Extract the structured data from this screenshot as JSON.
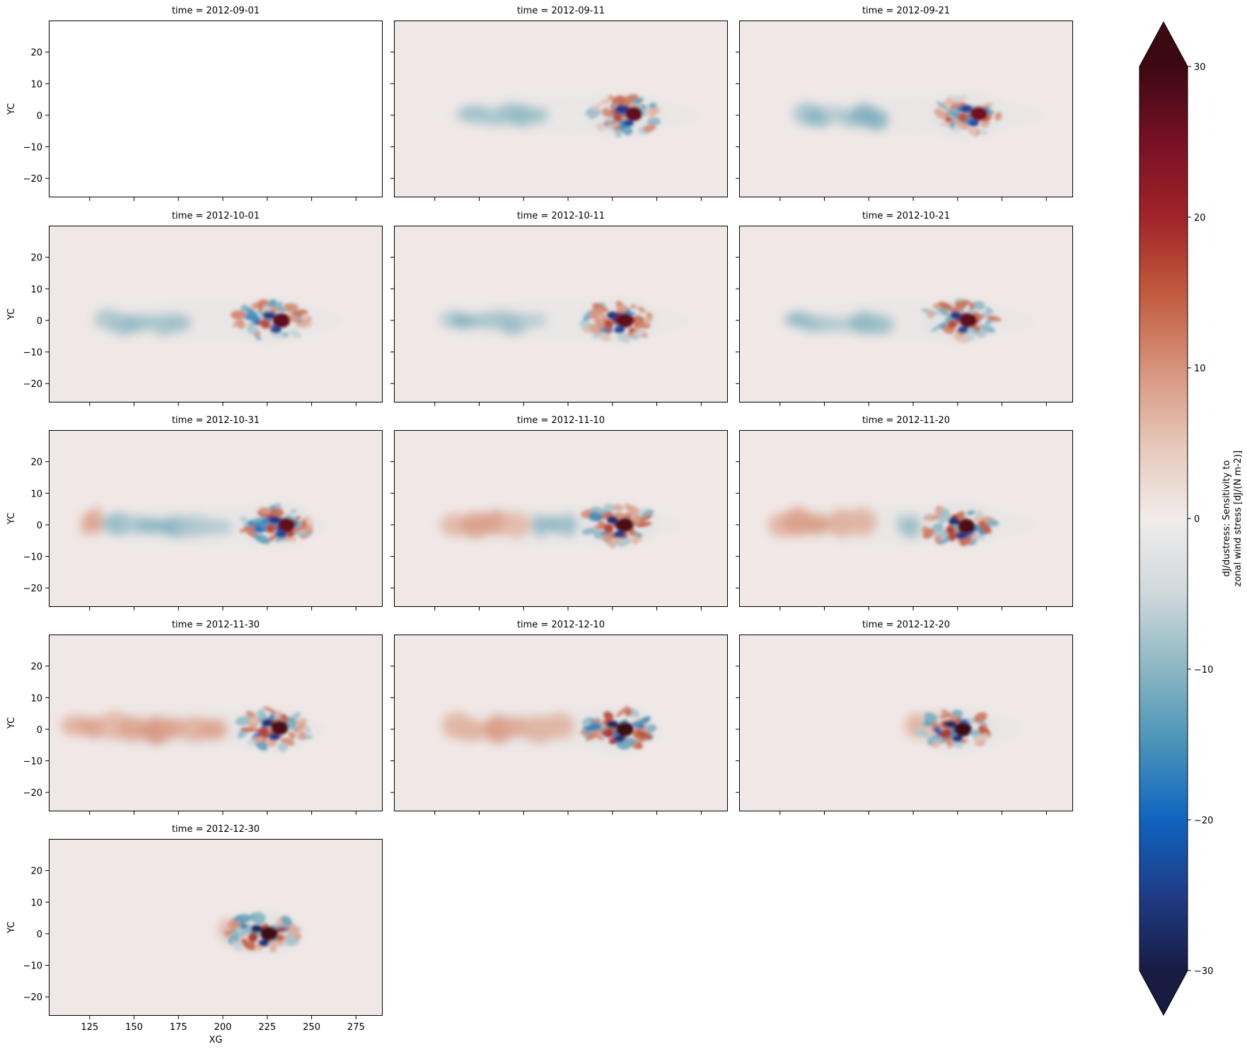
{
  "chart_data": {
    "type": "heatmap",
    "layout": "facet-grid",
    "facet_columns": 3,
    "facet_label_prefix": "time = ",
    "panels": [
      {
        "time": "2012-09-01",
        "empty": true
      },
      {
        "time": "2012-09-11",
        "features": {
          "blob_center_x": 232,
          "hot_core_x": 237,
          "hot_core_y": 0.5,
          "strength": 0.9,
          "x_extent": [
            130,
            275
          ],
          "west_blue_x": [
            140,
            185
          ],
          "west_red_x": []
        }
      },
      {
        "time": "2012-09-21",
        "features": {
          "blob_center_x": 230,
          "hot_core_x": 237,
          "hot_core_y": 0.5,
          "strength": 0.85,
          "x_extent": [
            128,
            275
          ],
          "west_blue_x": [
            135,
            185
          ],
          "west_red_x": []
        }
      },
      {
        "time": "2012-10-01",
        "features": {
          "blob_center_x": 227,
          "hot_core_x": 233,
          "hot_core_y": 0,
          "strength": 0.9,
          "x_extent": [
            122,
            270
          ],
          "west_blue_x": [
            130,
            180
          ],
          "west_red_x": []
        }
      },
      {
        "time": "2012-10-11",
        "features": {
          "blob_center_x": 228,
          "hot_core_x": 232,
          "hot_core_y": 0,
          "strength": 0.9,
          "x_extent": [
            125,
            270
          ],
          "west_blue_x": [
            130,
            185
          ],
          "west_red_x": []
        }
      },
      {
        "time": "2012-10-21",
        "features": {
          "blob_center_x": 226,
          "hot_core_x": 231,
          "hot_core_y": 0,
          "strength": 0.9,
          "x_extent": [
            125,
            270
          ],
          "west_blue_x": [
            130,
            185
          ],
          "west_red_x": []
        }
      },
      {
        "time": "2012-10-31",
        "features": {
          "blob_center_x": 230,
          "hot_core_x": 236,
          "hot_core_y": 0,
          "strength": 0.9,
          "x_extent": [
            120,
            260
          ],
          "west_blue_x": [
            135,
            200
          ],
          "west_red_x": [
            120,
            130
          ]
        }
      },
      {
        "time": "2012-11-10",
        "features": {
          "blob_center_x": 228,
          "hot_core_x": 232,
          "hot_core_y": 0,
          "strength": 0.95,
          "x_extent": [
            122,
            265
          ],
          "west_blue_x": [
            180,
            205
          ],
          "west_red_x": [
            130,
            175
          ]
        }
      },
      {
        "time": "2012-11-20",
        "features": {
          "blob_center_x": 226,
          "hot_core_x": 230,
          "hot_core_y": -0.5,
          "strength": 0.95,
          "x_extent": [
            118,
            270
          ],
          "west_blue_x": [
            190,
            205
          ],
          "west_red_x": [
            120,
            175
          ]
        }
      },
      {
        "time": "2012-11-30",
        "features": {
          "blob_center_x": 228,
          "hot_core_x": 232,
          "hot_core_y": 0.5,
          "strength": 0.95,
          "x_extent": [
            110,
            260
          ],
          "west_blue_x": [],
          "west_red_x": [
            110,
            200
          ]
        }
      },
      {
        "time": "2012-12-10",
        "features": {
          "blob_center_x": 228,
          "hot_core_x": 232,
          "hot_core_y": 0,
          "strength": 1.0,
          "x_extent": [
            130,
            255
          ],
          "west_blue_x": [],
          "west_red_x": [
            130,
            200
          ]
        }
      },
      {
        "time": "2012-12-20",
        "features": {
          "blob_center_x": 224,
          "hot_core_x": 228,
          "hot_core_y": 0,
          "strength": 1.0,
          "x_extent": [
            195,
            262
          ],
          "west_blue_x": [],
          "west_red_x": [
            195,
            218
          ]
        }
      },
      {
        "time": "2012-12-30",
        "features": {
          "blob_center_x": 222,
          "hot_core_x": 226,
          "hot_core_y": 0,
          "strength": 1.0,
          "x_extent": [
            196,
            246
          ],
          "west_blue_x": [],
          "west_red_x": [
            198,
            218
          ]
        }
      }
    ],
    "xlabel": "XG",
    "ylabel": "YC",
    "xlim": [
      102,
      290
    ],
    "ylim": [
      -26,
      30
    ],
    "xticks": [
      125,
      150,
      175,
      200,
      225,
      250,
      275
    ],
    "yticks": [
      -20,
      -10,
      0,
      10,
      20
    ],
    "grid": false,
    "colorbar": {
      "label_line1": "dJ/dustress: Sensitivity to",
      "label_line2": "zonal wind stress [dJ/(N m-2)]",
      "vmin": -30,
      "vmax": 30,
      "ticks": [
        -30,
        -20,
        -10,
        0,
        10,
        20,
        30
      ],
      "tick_labels": [
        "−30",
        "−20",
        "−10",
        "0",
        "10",
        "20",
        "30"
      ],
      "extend": "both",
      "colormap": "cmocean-balance",
      "stops": [
        "#181c43",
        "#1f3c86",
        "#0f64c0",
        "#4893b8",
        "#8bb6c2",
        "#cfd8dc",
        "#f1ecec",
        "#e7c6b7",
        "#d6937b",
        "#c15a3c",
        "#a12428",
        "#781026",
        "#3c0912"
      ]
    }
  }
}
